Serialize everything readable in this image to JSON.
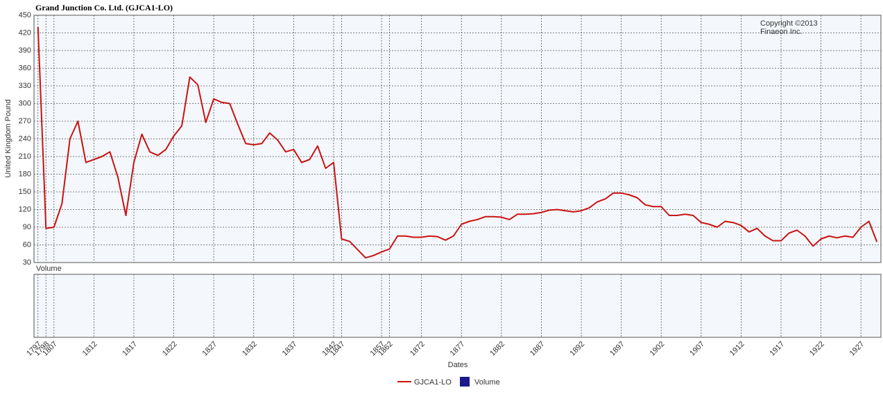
{
  "chart_data": {
    "type": "line",
    "title": "Grand Junction Co. Ltd. (GJCA1-LO)",
    "y_label": "United Kingdom Pound",
    "x_label": "Dates",
    "annotation": [
      "Copyright ©2013",
      "Finaeon Inc."
    ],
    "categories": [
      "1797",
      "1798",
      "1807",
      null,
      null,
      null,
      null,
      "1812",
      null,
      null,
      null,
      null,
      "1817",
      null,
      null,
      null,
      null,
      "1822",
      null,
      null,
      null,
      null,
      "1827",
      null,
      null,
      null,
      null,
      "1832",
      null,
      null,
      null,
      null,
      "1837",
      null,
      null,
      null,
      null,
      "1842",
      "1847",
      null,
      null,
      null,
      null,
      "1857",
      "1862",
      null,
      null,
      null,
      "1872",
      null,
      null,
      null,
      null,
      "1877",
      null,
      null,
      null,
      null,
      "1882",
      null,
      null,
      null,
      null,
      "1887",
      null,
      null,
      null,
      null,
      "1892",
      null,
      null,
      null,
      null,
      "1897",
      null,
      null,
      null,
      null,
      "1902",
      null,
      null,
      null,
      null,
      "1907",
      null,
      null,
      null,
      null,
      "1912",
      null,
      null,
      null,
      null,
      "1917",
      null,
      null,
      null,
      null,
      "1922",
      null,
      null,
      null,
      null,
      "1927",
      null,
      null
    ],
    "series": [
      {
        "name": "GJCA1-LO",
        "color": "#cc1111",
        "values": [
          430,
          88,
          90,
          130,
          240,
          270,
          200,
          205,
          210,
          218,
          175,
          110,
          200,
          248,
          218,
          212,
          222,
          245,
          262,
          345,
          332,
          268,
          308,
          302,
          300,
          265,
          232,
          230,
          232,
          250,
          238,
          218,
          222,
          200,
          205,
          228,
          190,
          200,
          70,
          66,
          52,
          38,
          42,
          48,
          53,
          75,
          75,
          73,
          73,
          75,
          74,
          68,
          75,
          95,
          100,
          103,
          108,
          108,
          107,
          103,
          112,
          112,
          113,
          115,
          119,
          120,
          118,
          116,
          118,
          123,
          133,
          138,
          148,
          148,
          145,
          140,
          128,
          125,
          125,
          110,
          110,
          112,
          110,
          98,
          95,
          90,
          100,
          98,
          93,
          82,
          88,
          75,
          67,
          67,
          80,
          85,
          75,
          58,
          70,
          75,
          72,
          75,
          73,
          90,
          100,
          65
        ]
      }
    ],
    "ylim": [
      30,
      450
    ],
    "yticks": [
      30,
      60,
      90,
      120,
      150,
      180,
      210,
      240,
      270,
      300,
      330,
      360,
      390,
      420,
      450
    ],
    "grid": true,
    "volume_panel": {
      "title": "Volume",
      "legend_name": "Volume",
      "color": "#1a1a8c"
    }
  }
}
